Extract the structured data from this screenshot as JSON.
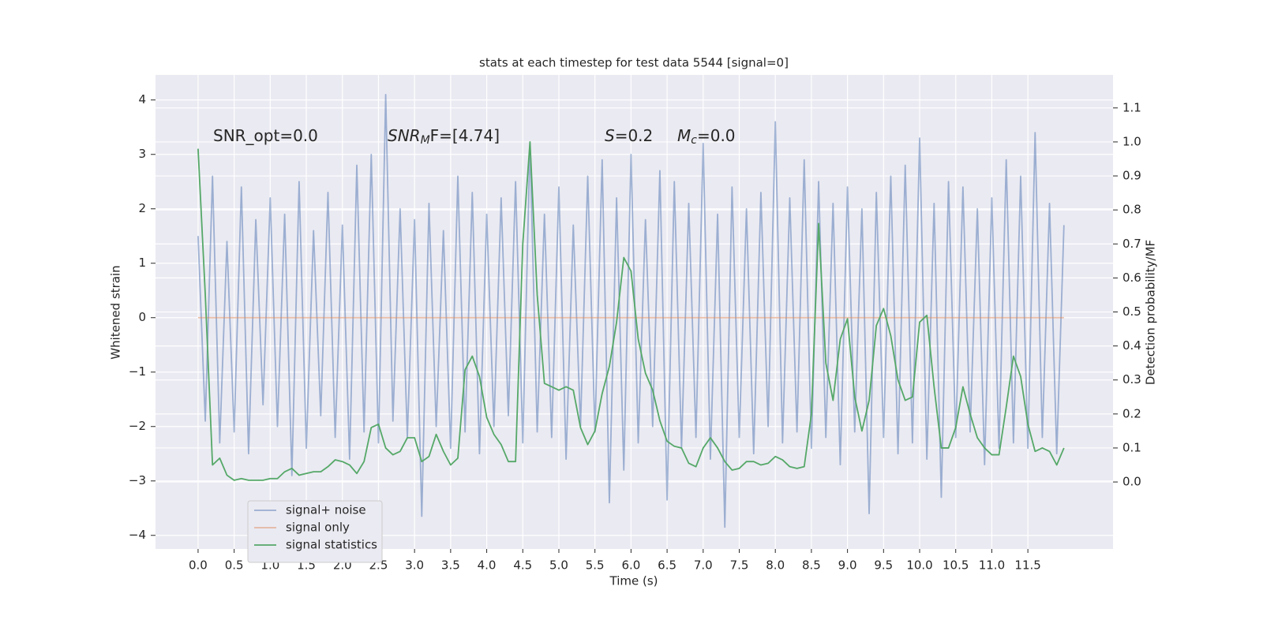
{
  "chart_data": {
    "type": "line",
    "title": "stats at each timestep for test data 5544 [signal=0]",
    "xlabel": "Time (s)",
    "ylabel": "Whitened strain",
    "y2label": "Detection probability/MF",
    "annotations": [
      {
        "text": "SNR_opt=0.0"
      },
      {
        "base": "SNR",
        "sub": "M",
        "after": "F=[4.74]"
      },
      {
        "base": "S",
        "after": "=0.2"
      },
      {
        "base": "M",
        "sub": "c",
        "after": "=0.0"
      }
    ],
    "grid": true,
    "legend": "lower left",
    "xlim": [
      -0.59,
      12.68
    ],
    "ylim": [
      -4.25,
      4.46
    ],
    "y2lim": [
      -0.197,
      1.197
    ],
    "xticks": [
      {
        "value": 0,
        "label": "0.0"
      },
      0.5,
      {
        "value": 1,
        "label": "1.0"
      },
      1.5,
      {
        "value": 2,
        "label": "2.0"
      },
      2.5,
      {
        "value": 3,
        "label": "3.0"
      },
      3.5,
      {
        "value": 4,
        "label": "4.0"
      },
      4.5,
      {
        "value": 5,
        "label": "5.0"
      },
      5.5,
      {
        "value": 6,
        "label": "6.0"
      },
      6.5,
      {
        "value": 7,
        "label": "7.0"
      },
      7.5,
      {
        "value": 8,
        "label": "8.0"
      },
      8.5,
      {
        "value": 9,
        "label": "9.0"
      },
      9.5,
      {
        "value": 10,
        "label": "10.0"
      },
      10.5,
      {
        "value": 11,
        "label": "11.0"
      },
      11.5
    ],
    "yticks": [
      {
        "value": -4,
        "label": "−4"
      },
      {
        "value": -3,
        "label": "−3"
      },
      {
        "value": -2,
        "label": "−2"
      },
      {
        "value": -1,
        "label": "−1"
      },
      0,
      1,
      2,
      3,
      4
    ],
    "y2ticks": [
      {
        "value": 0,
        "label": "0.0"
      },
      0.1,
      0.2,
      0.3,
      0.4,
      0.5,
      0.6,
      0.7,
      0.8,
      0.9,
      {
        "value": 1,
        "label": "1.0"
      },
      1.1
    ],
    "x": [
      0,
      0.1,
      0.2,
      0.3,
      0.4,
      0.5,
      0.6,
      0.7,
      0.8,
      0.9,
      1,
      1.1,
      1.2,
      1.3,
      1.4,
      1.5,
      1.6,
      1.7,
      1.8,
      1.9,
      2,
      2.1,
      2.2,
      2.3,
      2.4,
      2.5,
      2.6,
      2.7,
      2.8,
      2.9,
      3,
      3.1,
      3.2,
      3.3,
      3.4,
      3.5,
      3.6,
      3.7,
      3.8,
      3.9,
      4,
      4.1,
      4.2,
      4.3,
      4.4,
      4.5,
      4.6,
      4.7,
      4.8,
      4.9,
      5,
      5.1,
      5.2,
      5.3,
      5.4,
      5.5,
      5.6,
      5.7,
      5.8,
      5.9,
      6,
      6.1,
      6.2,
      6.3,
      6.4,
      6.5,
      6.6,
      6.7,
      6.8,
      6.9,
      7,
      7.1,
      7.2,
      7.3,
      7.4,
      7.5,
      7.6,
      7.7,
      7.8,
      7.9,
      8,
      8.1,
      8.2,
      8.3,
      8.4,
      8.5,
      8.6,
      8.7,
      8.8,
      8.9,
      9,
      9.1,
      9.2,
      9.3,
      9.4,
      9.5,
      9.6,
      9.7,
      9.8,
      9.9,
      10,
      10.1,
      10.2,
      10.3,
      10.4,
      10.5,
      10.6,
      10.7,
      10.8,
      10.9,
      11,
      11.1,
      11.2,
      11.3,
      11.4,
      11.5,
      11.6,
      11.7,
      11.8,
      11.9,
      12
    ],
    "series": [
      {
        "name": "signal+ noise",
        "color": "#4c72b0",
        "opacity": 0.5,
        "values": [
          1.5,
          -1.9,
          2.6,
          -2.3,
          1.4,
          -2.1,
          2.4,
          -2.5,
          1.8,
          -1.6,
          2.2,
          -2.0,
          1.9,
          -2.9,
          2.5,
          -2.4,
          1.6,
          -1.8,
          2.3,
          -2.2,
          1.7,
          -2.6,
          2.8,
          -2.1,
          3.0,
          -2.3,
          4.1,
          -1.9,
          2.0,
          -2.2,
          1.8,
          -3.65,
          2.1,
          -2.0,
          1.6,
          -2.4,
          2.6,
          -2.1,
          2.3,
          -2.5,
          1.9,
          -2.0,
          2.2,
          -1.8,
          2.5,
          -2.3,
          3.2,
          -2.1,
          1.9,
          -2.2,
          2.4,
          -2.6,
          1.7,
          -2.0,
          2.6,
          -2.1,
          2.9,
          -3.4,
          2.2,
          -2.8,
          3.0,
          -2.3,
          1.8,
          -2.0,
          2.7,
          -3.35,
          2.5,
          -2.4,
          2.1,
          -2.2,
          3.2,
          -2.6,
          1.9,
          -3.85,
          2.4,
          -2.2,
          2.0,
          -2.5,
          2.3,
          -2.0,
          3.6,
          -2.3,
          2.2,
          -2.1,
          2.9,
          -2.4,
          2.5,
          -2.2,
          2.1,
          -2.7,
          2.4,
          -2.1,
          2.0,
          -3.6,
          2.3,
          -2.2,
          2.6,
          -2.5,
          2.8,
          -2.3,
          3.3,
          -2.6,
          2.1,
          -3.3,
          2.5,
          -2.2,
          2.4,
          -2.1,
          2.0,
          -2.7,
          2.2,
          -2.4,
          2.9,
          -2.3,
          2.6,
          -2.4,
          3.4,
          -2.2,
          2.1,
          -2.5,
          1.7
        ]
      },
      {
        "name": "signal only",
        "color": "#dd8452",
        "opacity": 0.5,
        "values": [
          0,
          0,
          0,
          0,
          0,
          0,
          0,
          0,
          0,
          0,
          0,
          0,
          0,
          0,
          0,
          0,
          0,
          0,
          0,
          0,
          0,
          0,
          0,
          0,
          0,
          0,
          0,
          0,
          0,
          0,
          0,
          0,
          0,
          0,
          0,
          0,
          0,
          0,
          0,
          0,
          0,
          0,
          0,
          0,
          0,
          0,
          0,
          0,
          0,
          0,
          0,
          0,
          0,
          0,
          0,
          0,
          0,
          0,
          0,
          0,
          0,
          0,
          0,
          0,
          0,
          0,
          0,
          0,
          0,
          0,
          0,
          0,
          0,
          0,
          0,
          0,
          0,
          0,
          0,
          0,
          0,
          0,
          0,
          0,
          0,
          0,
          0,
          0,
          0,
          0,
          0,
          0,
          0,
          0,
          0,
          0,
          0,
          0,
          0,
          0,
          0,
          0,
          0,
          0,
          0,
          0,
          0,
          0,
          0,
          0,
          0,
          0,
          0,
          0,
          0,
          0,
          0,
          0,
          0,
          0,
          0
        ]
      },
      {
        "name": "signal statistics",
        "color": "#55a868",
        "opacity": 1,
        "axis": "y2",
        "values": [
          0.98,
          0.55,
          0.05,
          0.07,
          0.02,
          0.005,
          0.01,
          0.005,
          0.005,
          0.005,
          0.01,
          0.01,
          0.03,
          0.04,
          0.02,
          0.025,
          0.03,
          0.03,
          0.045,
          0.065,
          0.06,
          0.05,
          0.025,
          0.06,
          0.16,
          0.17,
          0.1,
          0.08,
          0.09,
          0.13,
          0.13,
          0.06,
          0.075,
          0.14,
          0.09,
          0.05,
          0.07,
          0.33,
          0.37,
          0.31,
          0.19,
          0.14,
          0.11,
          0.06,
          0.06,
          0.7,
          1.0,
          0.55,
          0.29,
          0.28,
          0.27,
          0.28,
          0.27,
          0.16,
          0.11,
          0.15,
          0.26,
          0.34,
          0.47,
          0.66,
          0.62,
          0.42,
          0.32,
          0.27,
          0.18,
          0.12,
          0.105,
          0.1,
          0.055,
          0.045,
          0.1,
          0.13,
          0.1,
          0.06,
          0.035,
          0.04,
          0.06,
          0.06,
          0.05,
          0.055,
          0.075,
          0.065,
          0.045,
          0.04,
          0.045,
          0.2,
          0.76,
          0.35,
          0.24,
          0.42,
          0.48,
          0.25,
          0.15,
          0.24,
          0.46,
          0.51,
          0.43,
          0.3,
          0.24,
          0.25,
          0.47,
          0.49,
          0.28,
          0.1,
          0.1,
          0.16,
          0.28,
          0.2,
          0.13,
          0.1,
          0.08,
          0.08,
          0.22,
          0.37,
          0.31,
          0.17,
          0.09,
          0.1,
          0.09,
          0.05,
          0.1
        ]
      }
    ]
  }
}
